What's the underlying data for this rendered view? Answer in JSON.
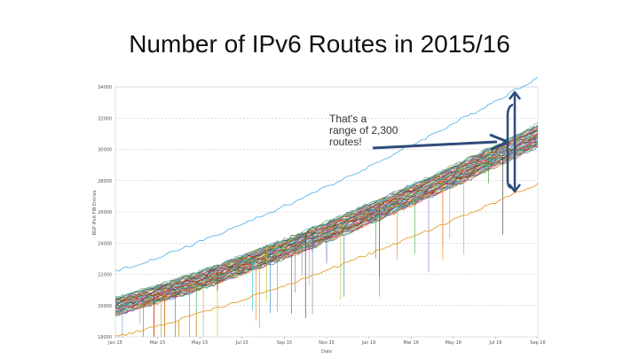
{
  "slide": {
    "title": "Number of IPv6 Routes in 2015/16"
  },
  "chart_data": {
    "type": "line",
    "title": "",
    "xlabel": "Date",
    "ylabel": "BGP IPv6 FIB Entries",
    "x_ticks": [
      "Jan 15",
      "Mar 15",
      "May 15",
      "Jul 15",
      "Sep 15",
      "Nov 15",
      "Jan 16",
      "Mar 16",
      "May 16",
      "Jul 16",
      "Sep 16"
    ],
    "y_ticks": [
      "18000",
      "20000",
      "22000",
      "24000",
      "26000",
      "28000",
      "30000",
      "32000",
      "34000"
    ],
    "ylim": [
      18000,
      34000
    ],
    "xlim": [
      0,
      20
    ],
    "series_count_note": "many peer series",
    "series_summary": {
      "upper_envelope": {
        "start": 22200,
        "end": 34600
      },
      "main_band_top": {
        "start": 20500,
        "end": 31600
      },
      "main_band_bottom": {
        "start": 19400,
        "end": 30200
      },
      "low_series": {
        "start": 18000,
        "end": 27800
      }
    },
    "annotation": "That's a range of 2,300 routes!"
  },
  "colors": {
    "upper_line": "#5fb6e6",
    "low_line": "#e2a12a",
    "arrow": "#2f4b7a",
    "grid": "#b9b9b9",
    "band_palette": [
      "#1f77b4",
      "#ff7f0e",
      "#2ca02c",
      "#d62728",
      "#9467bd",
      "#8c564b",
      "#e377c2",
      "#7f7f7f",
      "#bcbd22",
      "#17becf",
      "#333333",
      "#5b9bd5",
      "#70ad47",
      "#c00000"
    ]
  }
}
